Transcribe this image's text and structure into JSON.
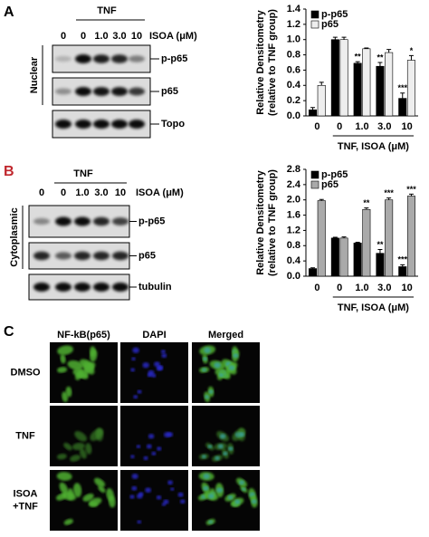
{
  "panels": [
    {
      "letter": "A",
      "treatment": "TNF",
      "dose_label": "ISOA (μM)",
      "lanes": [
        "0",
        "0",
        "1.0",
        "3.0",
        "10"
      ],
      "fraction": "Nuclear",
      "rows": [
        "p-p65",
        "p65",
        "Topo"
      ]
    },
    {
      "letter": "B",
      "treatment": "TNF",
      "dose_label": "ISOA (μM)",
      "lanes": [
        "0",
        "0",
        "1.0",
        "3.0",
        "10"
      ],
      "fraction": "Cytoplasmic",
      "rows": [
        "p-p65",
        "p65",
        "tubulin"
      ]
    }
  ],
  "imaging": {
    "letter": "C",
    "columns": [
      "NF-kB(p65)",
      "DAPI",
      "Merged"
    ],
    "rows": [
      [
        "DMSO"
      ],
      [
        "TNF"
      ],
      [
        "ISOA",
        "+TNF"
      ]
    ]
  },
  "chart_data": [
    {
      "type": "bar",
      "ylabel": [
        "Relative Densitometry",
        "(relative to TNF group)"
      ],
      "xlabel": "TNF, ISOA (μM)",
      "categories": [
        "0",
        "0",
        "1.0",
        "3.0",
        "10"
      ],
      "legend": "upper left",
      "ylim": [
        0,
        1.4
      ],
      "yticks": [
        {
          "value": 0,
          "label": "0.0"
        },
        0.2,
        0.4,
        0.6,
        0.8,
        {
          "value": 1,
          "label": "1.0"
        },
        1.2,
        1.4
      ],
      "series": [
        {
          "name": "p-p65",
          "color": "#000000",
          "values": [
            0.08,
            1.0,
            0.69,
            0.65,
            0.23
          ],
          "errors": [
            0.03,
            0.03,
            0.02,
            0.05,
            0.07
          ],
          "significance": [
            null,
            null,
            "**",
            "**",
            "***"
          ]
        },
        {
          "name": "p65",
          "color": "#eeeeee",
          "values": [
            0.4,
            1.0,
            0.88,
            0.83,
            0.73
          ],
          "errors": [
            0.04,
            0.03,
            0.01,
            0.04,
            0.06
          ],
          "significance": [
            null,
            null,
            null,
            null,
            "*"
          ]
        }
      ]
    },
    {
      "type": "bar",
      "ylabel": [
        "Relative Densitometry",
        "(relative to TNF group)"
      ],
      "xlabel": "TNF, ISOA (μM)",
      "categories": [
        "0",
        "0",
        "1.0",
        "3.0",
        "10"
      ],
      "legend": "upper left",
      "ylim": [
        0,
        2.8
      ],
      "yticks": [
        {
          "value": 0,
          "label": "0.0"
        },
        0.4,
        0.8,
        1.2,
        1.6,
        {
          "value": 2,
          "label": "2.0"
        },
        2.4,
        2.8
      ],
      "series": [
        {
          "name": "p-p65",
          "color": "#000000",
          "values": [
            0.2,
            1.0,
            0.87,
            0.6,
            0.25
          ],
          "errors": [
            0.02,
            0.02,
            0.02,
            0.1,
            0.05
          ],
          "significance": [
            null,
            null,
            null,
            "**",
            "***"
          ]
        },
        {
          "name": "p65",
          "color": "#aaaaaa",
          "values": [
            1.98,
            1.0,
            1.75,
            2.0,
            2.1
          ],
          "errors": [
            0.03,
            0.03,
            0.04,
            0.05,
            0.05
          ],
          "significance": [
            null,
            null,
            "**",
            "***",
            "***"
          ]
        }
      ]
    }
  ]
}
